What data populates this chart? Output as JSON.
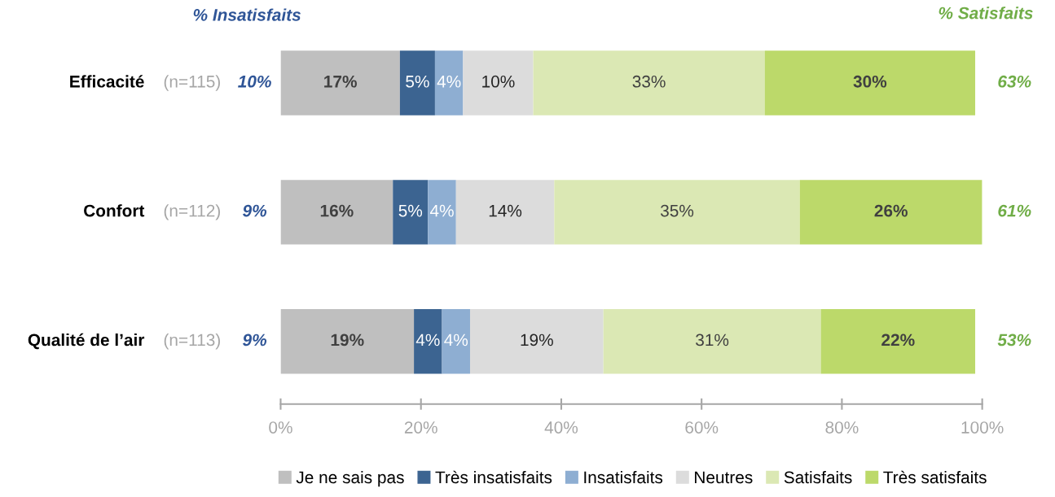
{
  "chart_data": {
    "type": "bar",
    "orientation": "horizontal",
    "stacked": true,
    "categories": [
      "Efficacité",
      "Confort",
      "Qualité de l’air"
    ],
    "series": [
      {
        "name": "Je ne sais pas",
        "color": "#bfbfbf",
        "values": [
          17,
          16,
          19
        ],
        "value_labels": [
          "17%",
          "16%",
          "19%"
        ]
      },
      {
        "name": "Très insatisfaits",
        "color": "#3c6491",
        "values": [
          5,
          5,
          4
        ],
        "value_labels": [
          "5%",
          "5%",
          "4%"
        ]
      },
      {
        "name": "Insatisfaits",
        "color": "#8eaed2",
        "values": [
          4,
          4,
          4
        ],
        "value_labels": [
          "4%",
          "4%",
          "4%"
        ]
      },
      {
        "name": "Neutres",
        "color": "#dcdcdc",
        "values": [
          10,
          14,
          19
        ],
        "value_labels": [
          "10%",
          "14%",
          "19%"
        ]
      },
      {
        "name": "Satisfaits",
        "color": "#dbe8b4",
        "values": [
          33,
          35,
          31
        ],
        "value_labels": [
          "33%",
          "35%",
          "31%"
        ]
      },
      {
        "name": "Très satisfaits",
        "color": "#bcd96a",
        "values": [
          30,
          26,
          22
        ],
        "value_labels": [
          "30%",
          "26%",
          "22%"
        ]
      }
    ],
    "xlim": [
      0,
      100
    ],
    "xticks": [
      {
        "value": 0,
        "label": "0%"
      },
      {
        "value": 20,
        "label": "20%"
      },
      {
        "value": 40,
        "label": "40%"
      },
      {
        "value": 60,
        "label": "60%"
      },
      {
        "value": 80,
        "label": "80%"
      },
      {
        "value": 100,
        "label": "100%"
      }
    ],
    "grid": false,
    "legend": "bottom",
    "annotations": [
      "% Insatisfaits",
      "% Satisfaits",
      "(n=115)",
      "10%",
      "63%",
      "(n=112)",
      "9%",
      "61%",
      "(n=113)",
      "9%",
      "53%"
    ]
  }
}
